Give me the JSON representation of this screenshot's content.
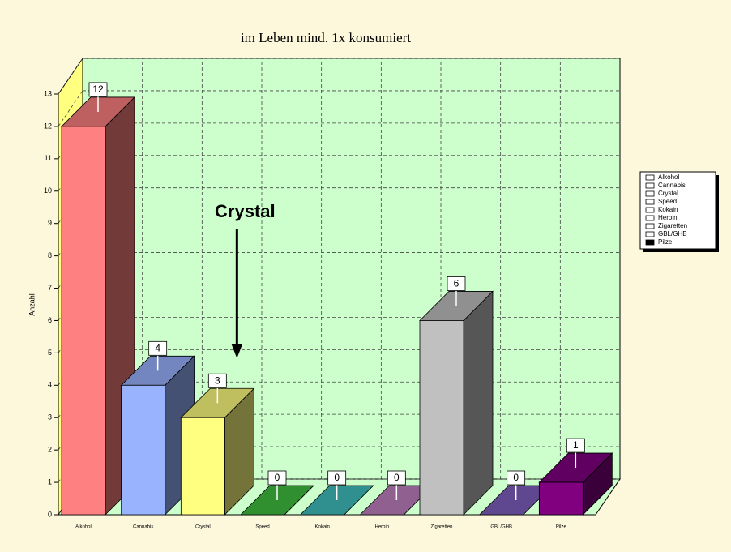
{
  "chart_data": {
    "type": "bar3d",
    "title": "im Leben mind. 1x konsumiert",
    "y_label": "Anzahl",
    "categories": [
      "Alkohol",
      "Cannabis",
      "Crystal",
      "Speed",
      "Kokain",
      "Heroin",
      "Zigaretten",
      "GBL/GHB",
      "Pilze"
    ],
    "values": [
      12,
      4,
      3,
      0,
      0,
      0,
      6,
      0,
      1
    ],
    "colors": [
      "#ff8080",
      "#99b3ff",
      "#ffff80",
      "#40c040",
      "#40c0c0",
      "#c080c0",
      "#c0c0c0",
      "#8060c0",
      "#800080"
    ],
    "ylim": [
      0,
      13
    ],
    "yticks": [
      0,
      1,
      2,
      3,
      4,
      5,
      6,
      7,
      8,
      9,
      10,
      11,
      12,
      13
    ],
    "grid": true,
    "legend": "right",
    "annotation": {
      "text": "Crystal",
      "target": 2
    }
  }
}
